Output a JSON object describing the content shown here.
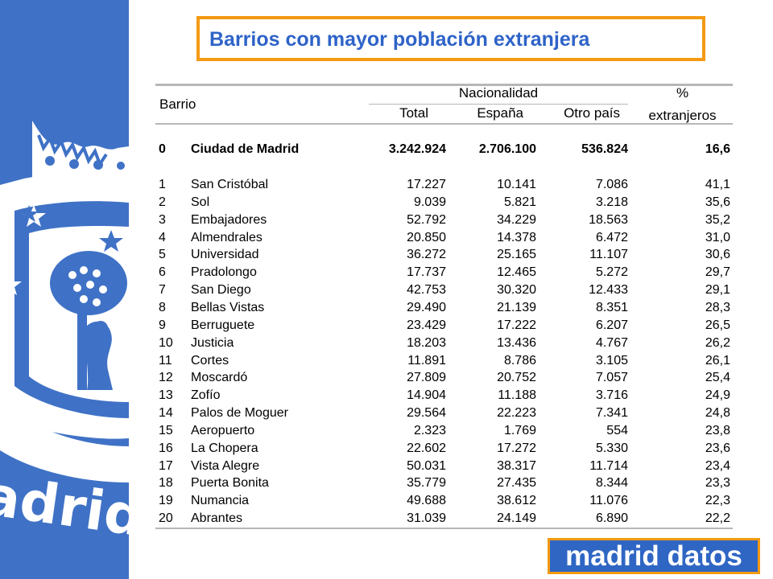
{
  "title": "Barrios con mayor población extranjera",
  "header": {
    "barrio": "Barrio",
    "nacionalidad": "Nacionalidad",
    "total": "Total",
    "espana": "España",
    "otro_pais": "Otro país",
    "pct_line1": "%",
    "pct_line2": "extranjeros"
  },
  "total_row": {
    "rank": "0",
    "name": "Ciudad de Madrid",
    "total": "3.242.924",
    "espana": "2.706.100",
    "otro": "536.824",
    "pct": "16,6"
  },
  "rows": [
    {
      "rank": "1",
      "name": "San Cristóbal",
      "total": "17.227",
      "espana": "10.141",
      "otro": "7.086",
      "pct": "41,1"
    },
    {
      "rank": "2",
      "name": "Sol",
      "total": "9.039",
      "espana": "5.821",
      "otro": "3.218",
      "pct": "35,6"
    },
    {
      "rank": "3",
      "name": "Embajadores",
      "total": "52.792",
      "espana": "34.229",
      "otro": "18.563",
      "pct": "35,2"
    },
    {
      "rank": "4",
      "name": "Almendrales",
      "total": "20.850",
      "espana": "14.378",
      "otro": "6.472",
      "pct": "31,0"
    },
    {
      "rank": "5",
      "name": "Universidad",
      "total": "36.272",
      "espana": "25.165",
      "otro": "11.107",
      "pct": "30,6"
    },
    {
      "rank": "6",
      "name": "Pradolongo",
      "total": "17.737",
      "espana": "12.465",
      "otro": "5.272",
      "pct": "29,7"
    },
    {
      "rank": "7",
      "name": "San Diego",
      "total": "42.753",
      "espana": "30.320",
      "otro": "12.433",
      "pct": "29,1"
    },
    {
      "rank": "8",
      "name": "Bellas Vistas",
      "total": "29.490",
      "espana": "21.139",
      "otro": "8.351",
      "pct": "28,3"
    },
    {
      "rank": "9",
      "name": "Berruguete",
      "total": "23.429",
      "espana": "17.222",
      "otro": "6.207",
      "pct": "26,5"
    },
    {
      "rank": "10",
      "name": "Justicia",
      "total": "18.203",
      "espana": "13.436",
      "otro": "4.767",
      "pct": "26,2"
    },
    {
      "rank": "11",
      "name": "Cortes",
      "total": "11.891",
      "espana": "8.786",
      "otro": "3.105",
      "pct": "26,1"
    },
    {
      "rank": "12",
      "name": "Moscardó",
      "total": "27.809",
      "espana": "20.752",
      "otro": "7.057",
      "pct": "25,4"
    },
    {
      "rank": "13",
      "name": "Zofío",
      "total": "14.904",
      "espana": "11.188",
      "otro": "3.716",
      "pct": "24,9"
    },
    {
      "rank": "14",
      "name": "Palos de Moguer",
      "total": "29.564",
      "espana": "22.223",
      "otro": "7.341",
      "pct": "24,8"
    },
    {
      "rank": "15",
      "name": "Aeropuerto",
      "total": "2.323",
      "espana": "1.769",
      "otro": "554",
      "pct": "23,8"
    },
    {
      "rank": "16",
      "name": "La Chopera",
      "total": "22.602",
      "espana": "17.272",
      "otro": "5.330",
      "pct": "23,6"
    },
    {
      "rank": "17",
      "name": "Vista Alegre",
      "total": "50.031",
      "espana": "38.317",
      "otro": "11.714",
      "pct": "23,4"
    },
    {
      "rank": "18",
      "name": "Puerta Bonita",
      "total": "35.779",
      "espana": "27.435",
      "otro": "8.344",
      "pct": "23,3"
    },
    {
      "rank": "19",
      "name": "Numancia",
      "total": "49.688",
      "espana": "38.612",
      "otro": "11.076",
      "pct": "22,3"
    },
    {
      "rank": "20",
      "name": "Abrantes",
      "total": "31.039",
      "espana": "24.149",
      "otro": "6.890",
      "pct": "22,2"
    }
  ],
  "sidebar_logo_text": "Madrid",
  "brand": "madrid datos",
  "colors": {
    "sidebar_blue": "#3f72c6",
    "title_blue": "#2e63c8",
    "accent_orange": "#f39a12",
    "brand_blue": "#2f66c4"
  }
}
